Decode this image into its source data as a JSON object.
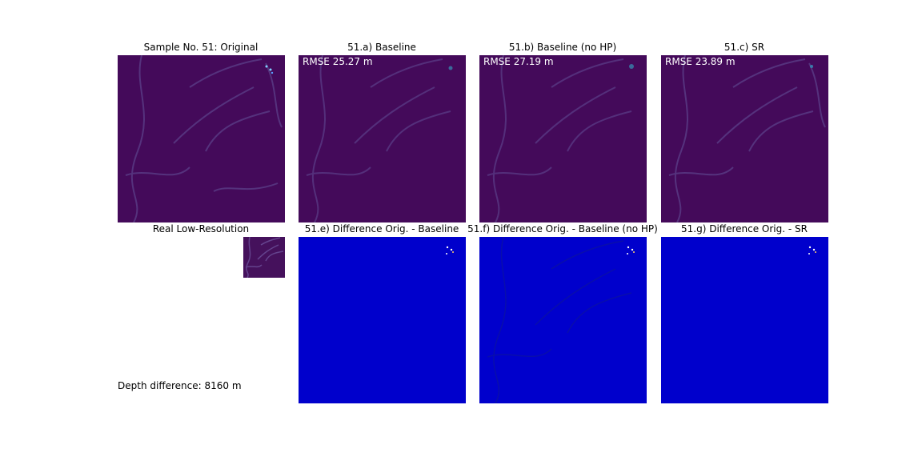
{
  "chart_data": {
    "type": "heatmap",
    "sample_number": 51,
    "panels": [
      {
        "id": "original",
        "title": "Sample No. 51: Original",
        "kind": "depth"
      },
      {
        "id": "baseline",
        "title": "51.a) Baseline",
        "kind": "depth",
        "rmse_label": "RMSE 25.27 m",
        "rmse_m": 25.27
      },
      {
        "id": "baseline_no_hp",
        "title": "51.b) Baseline (no HP)",
        "kind": "depth",
        "rmse_label": "RMSE 27.19 m",
        "rmse_m": 27.19
      },
      {
        "id": "sr",
        "title": "51.c) SR",
        "kind": "depth",
        "rmse_label": "RMSE 23.89 m",
        "rmse_m": 23.89
      },
      {
        "id": "low_res",
        "title": "Real Low-Resolution",
        "kind": "low-resolution"
      },
      {
        "id": "diff_baseline",
        "title": "51.e) Difference Orig. - Baseline",
        "kind": "difference"
      },
      {
        "id": "diff_baseline_no_hp",
        "title": "51.f) Difference Orig. - Baseline (no HP)",
        "kind": "difference"
      },
      {
        "id": "diff_sr",
        "title": "51.g) Difference Orig. - SR",
        "kind": "difference"
      }
    ],
    "depth_difference_label": "Depth difference: 8160 m",
    "depth_difference_m": 8160,
    "colors": {
      "depth_colormap_base": "#440a5a",
      "difference_colormap_base": "#0000cc",
      "ridge": "#5a3c86",
      "text_on_panel": "#ffffff"
    }
  }
}
